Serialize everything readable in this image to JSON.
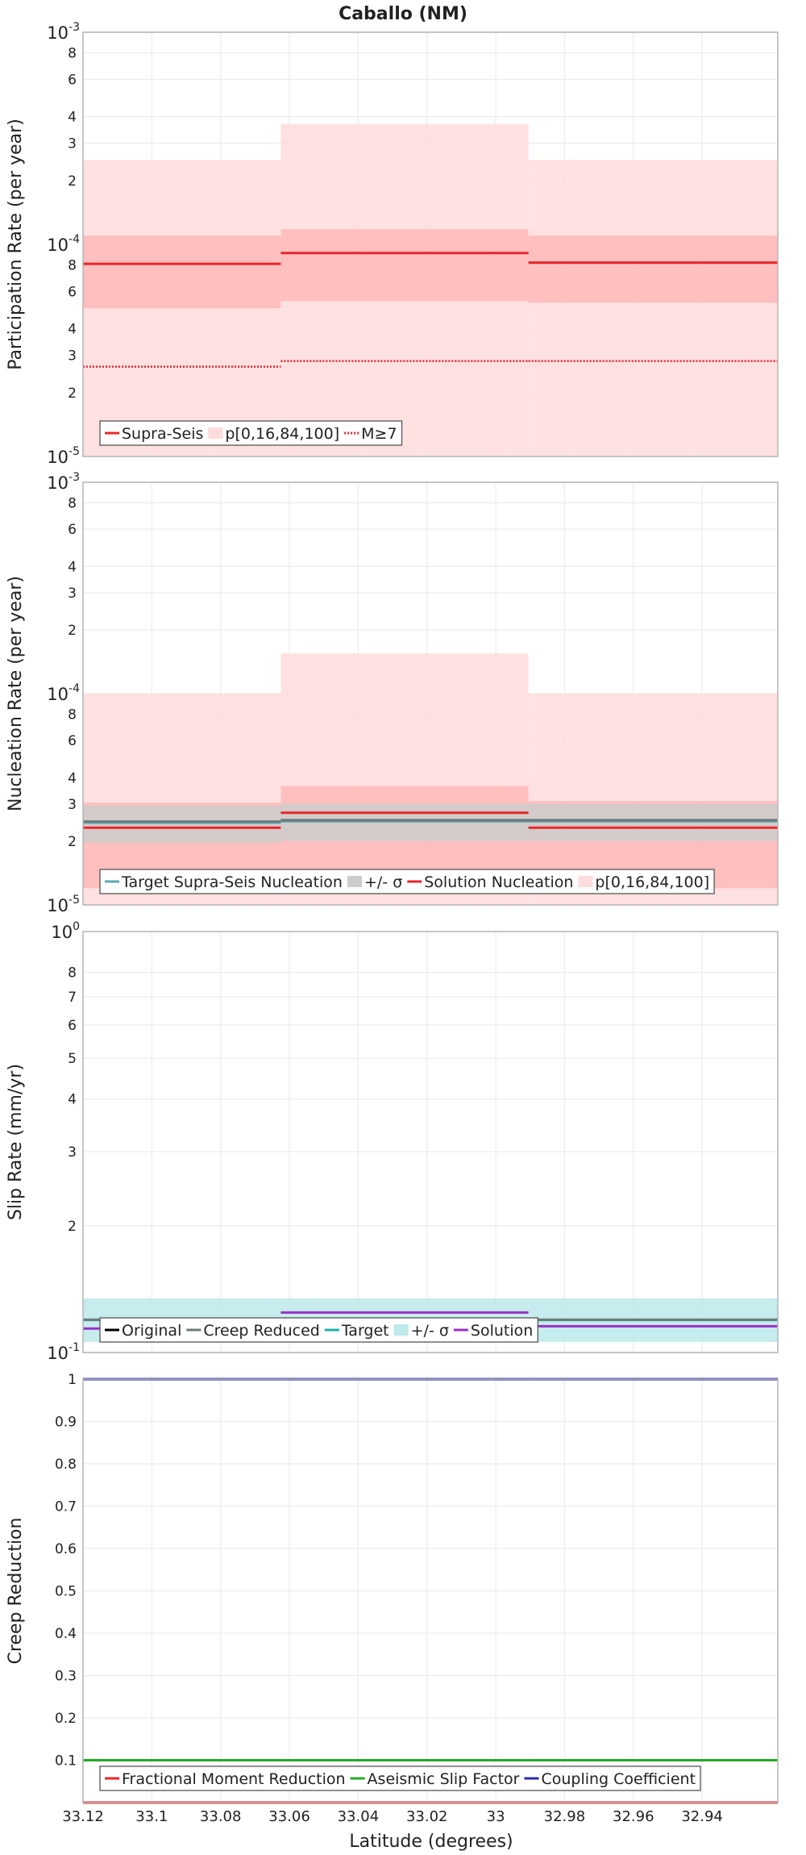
{
  "chart_data": {
    "title": "Caballo (NM)",
    "x_axis": {
      "label": "Latitude (degrees)",
      "range": [
        33.12,
        32.918
      ],
      "ticks": [
        33.12,
        33.1,
        33.08,
        33.06,
        33.04,
        33.02,
        33,
        32.98,
        32.96,
        32.94
      ],
      "tick_labels": [
        "33.12",
        "33.1",
        "33.08",
        "33.06",
        "33.04",
        "33.02",
        "33",
        "32.98",
        "32.96",
        "32.94"
      ]
    },
    "segments": [
      [
        33.12,
        33.0625
      ],
      [
        33.0625,
        32.9905
      ],
      [
        32.9905,
        32.918
      ]
    ],
    "colors": {
      "supra_seis": "#e8262a",
      "band_outer": "#ffdcdc",
      "band_inner": "#ffb8b8",
      "sigma_band": "#cccccc",
      "target_nucleation": "#58a8b4",
      "creep_reduced": "#6d7a7a",
      "target_slip": "#20b0a8",
      "slip_band": "#bde9ea",
      "solution_slip": "#9a30c8",
      "aseismic": "#22aa22",
      "coupling": "#2828a8",
      "original": "#000000"
    },
    "panels": [
      {
        "type": "line",
        "ylabel": "Participation Rate (per year)",
        "yscale": "log",
        "ylim": [
          1e-05,
          0.001
        ],
        "ytick_labels": [
          {
            "v": 2e-05,
            "t": "2"
          },
          {
            "v": 3e-05,
            "t": "3"
          },
          {
            "v": 4e-05,
            "t": "4"
          },
          {
            "v": 6e-05,
            "t": "6"
          },
          {
            "v": 8e-05,
            "t": "8"
          },
          {
            "v": 0.0002,
            "t": "2"
          },
          {
            "v": 0.0003,
            "t": "3"
          },
          {
            "v": 0.0004,
            "t": "4"
          },
          {
            "v": 0.0006,
            "t": "6"
          },
          {
            "v": 0.0008,
            "t": "8"
          }
        ],
        "ydecades": [
          {
            "v": 1e-05,
            "base": "10",
            "exp": "-5"
          },
          {
            "v": 0.0001,
            "base": "10",
            "exp": "-4"
          },
          {
            "v": 0.001,
            "base": "10",
            "exp": "-3"
          }
        ],
        "bands": [
          {
            "name": "p[0,100]",
            "color": "band_outer",
            "values": [
              [
                1e-05,
                0.00025
              ],
              [
                1e-05,
                0.00037
              ],
              [
                1e-05,
                0.00025
              ]
            ]
          },
          {
            "name": "p[16,84]",
            "color": "band_inner",
            "values": [
              [
                5e-05,
                0.00011
              ],
              [
                5.4e-05,
                0.000118
              ],
              [
                5.3e-05,
                0.00011
              ]
            ]
          }
        ],
        "series": [
          {
            "name": "Supra-Seis",
            "color": "supra_seis",
            "values": [
              8.1e-05,
              9.1e-05,
              8.2e-05
            ]
          },
          {
            "name": "M≥7",
            "color": "supra_seis",
            "dash": true,
            "values": [
              2.65e-05,
              2.82e-05,
              2.82e-05
            ]
          }
        ],
        "legend": [
          {
            "label": "Supra-Seis",
            "kind": "line",
            "color": "supra_seis"
          },
          {
            "label": "p[0,16,84,100]",
            "kind": "box",
            "color": "band_outer"
          },
          {
            "label": "M≥7",
            "kind": "dotted",
            "color": "supra_seis"
          }
        ]
      },
      {
        "type": "line",
        "ylabel": "Nucleation Rate (per year)",
        "yscale": "log",
        "ylim": [
          1e-05,
          0.001
        ],
        "ytick_labels": [
          {
            "v": 2e-05,
            "t": "2"
          },
          {
            "v": 3e-05,
            "t": "3"
          },
          {
            "v": 4e-05,
            "t": "4"
          },
          {
            "v": 6e-05,
            "t": "6"
          },
          {
            "v": 8e-05,
            "t": "8"
          },
          {
            "v": 0.0002,
            "t": "2"
          },
          {
            "v": 0.0003,
            "t": "3"
          },
          {
            "v": 0.0004,
            "t": "4"
          },
          {
            "v": 0.0006,
            "t": "6"
          },
          {
            "v": 0.0008,
            "t": "8"
          }
        ],
        "ydecades": [
          {
            "v": 1e-05,
            "base": "10",
            "exp": "-5"
          },
          {
            "v": 0.0001,
            "base": "10",
            "exp": "-4"
          },
          {
            "v": 0.001,
            "base": "10",
            "exp": "-3"
          }
        ],
        "bands": [
          {
            "name": "p[0,100]",
            "color": "band_outer",
            "values": [
              [
                1e-05,
                0.0001
              ],
              [
                1e-05,
                0.000155
              ],
              [
                1e-05,
                0.0001
              ]
            ]
          },
          {
            "name": "p[16,84]",
            "color": "band_inner",
            "values": [
              [
                1.2e-05,
                3.05e-05
              ],
              [
                1.25e-05,
                3.65e-05
              ],
              [
                1.2e-05,
                3.1e-05
              ]
            ]
          },
          {
            "name": "+/- σ",
            "color": "sigma_band",
            "values": [
              [
                1.97e-05,
                2.95e-05
              ],
              [
                2.01e-05,
                3.01e-05
              ],
              [
                2.01e-05,
                3.01e-05
              ]
            ]
          }
        ],
        "series": [
          {
            "name": "Target Supra-Seis Nucleation",
            "color": "target_nucleation",
            "values": [
              2.45e-05,
              2.49e-05,
              2.49e-05
            ]
          },
          {
            "name": "Creep Reduced",
            "color": "creep_reduced",
            "values": [
              2.48e-05,
              2.52e-05,
              2.52e-05
            ]
          },
          {
            "name": "Solution Nucleation",
            "color": "supra_seis",
            "values": [
              2.32e-05,
              2.73e-05,
              2.32e-05
            ]
          }
        ],
        "legend": [
          {
            "label": "Target Supra-Seis Nucleation",
            "kind": "line",
            "color": "target_nucleation"
          },
          {
            "label": "+/- σ",
            "kind": "box",
            "color": "sigma_band"
          },
          {
            "label": "Solution Nucleation",
            "kind": "line",
            "color": "supra_seis"
          },
          {
            "label": "p[0,16,84,100]",
            "kind": "box",
            "color": "band_outer"
          }
        ]
      },
      {
        "type": "line",
        "ylabel": "Slip Rate (mm/yr)",
        "yscale": "log",
        "ylim": [
          0.1,
          1
        ],
        "ytick_labels": [
          {
            "v": 0.2,
            "t": "2"
          },
          {
            "v": 0.3,
            "t": "3"
          },
          {
            "v": 0.4,
            "t": "4"
          },
          {
            "v": 0.5,
            "t": "5"
          },
          {
            "v": 0.6,
            "t": "6"
          },
          {
            "v": 0.7,
            "t": "7"
          },
          {
            "v": 0.8,
            "t": "8"
          }
        ],
        "ydecades": [
          {
            "v": 0.1,
            "base": "10",
            "exp": "-1"
          },
          {
            "v": 1,
            "base": "10",
            "exp": "0"
          }
        ],
        "bands": [
          {
            "name": "+/- σ",
            "color": "slip_band",
            "values": [
              [
                0.106,
                0.1345
              ],
              [
                0.106,
                0.1345
              ],
              [
                0.106,
                0.1345
              ]
            ]
          }
        ],
        "series": [
          {
            "name": "Target",
            "color": "target_slip",
            "values": [
              0.1195,
              0.1195,
              0.1195
            ]
          },
          {
            "name": "Original",
            "color": "original",
            "values": [
              0.1195,
              0.1195,
              0.1195
            ],
            "hidden_under": true
          },
          {
            "name": "Creep Reduced",
            "color": "creep_reduced",
            "values": [
              0.1197,
              0.1197,
              0.1197
            ]
          },
          {
            "name": "Solution",
            "color": "solution_slip",
            "values": [
              0.114,
              0.1245,
              0.1155
            ]
          }
        ],
        "legend": [
          {
            "label": "Original",
            "kind": "line",
            "color": "original"
          },
          {
            "label": "Creep Reduced",
            "kind": "line",
            "color": "creep_reduced"
          },
          {
            "label": "Target",
            "kind": "line",
            "color": "target_slip"
          },
          {
            "label": "+/- σ",
            "kind": "box",
            "color": "slip_band"
          },
          {
            "label": "Solution",
            "kind": "line",
            "color": "solution_slip"
          }
        ]
      },
      {
        "type": "line",
        "ylabel": "Creep Reduction",
        "yscale": "linear",
        "ylim": [
          0,
          1
        ],
        "ytick_labels": [
          {
            "v": 0.1,
            "t": "0.1"
          },
          {
            "v": 0.2,
            "t": "0.2"
          },
          {
            "v": 0.3,
            "t": "0.3"
          },
          {
            "v": 0.4,
            "t": "0.4"
          },
          {
            "v": 0.5,
            "t": "0.5"
          },
          {
            "v": 0.6,
            "t": "0.6"
          },
          {
            "v": 0.7,
            "t": "0.7"
          },
          {
            "v": 0.8,
            "t": "0.8"
          },
          {
            "v": 0.9,
            "t": "0.9"
          },
          {
            "v": 1,
            "t": "1"
          }
        ],
        "ydecades": [],
        "bands": [],
        "series": [
          {
            "name": "Fractional Moment Reduction",
            "color": "supra_seis",
            "values": [
              0,
              0,
              0
            ]
          },
          {
            "name": "Aseismic Slip Factor",
            "color": "aseismic",
            "values": [
              0.1,
              0.1,
              0.1
            ]
          },
          {
            "name": "Coupling Coefficient",
            "color": "coupling",
            "values": [
              1,
              1,
              1
            ]
          }
        ],
        "legend": [
          {
            "label": "Fractional Moment Reduction",
            "kind": "line",
            "color": "supra_seis"
          },
          {
            "label": "Aseismic Slip Factor",
            "kind": "line",
            "color": "aseismic"
          },
          {
            "label": "Coupling Coefficient",
            "kind": "line",
            "color": "coupling"
          }
        ]
      }
    ]
  }
}
